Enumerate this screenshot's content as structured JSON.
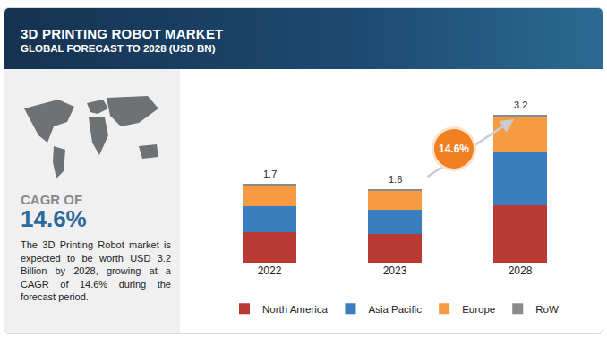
{
  "chart_data": {
    "type": "bar",
    "title": "3D PRINTING ROBOT MARKET",
    "subtitle": "GLOBAL FORECAST TO 2028 (USD BN)",
    "categories": [
      "2022",
      "2023",
      "2028"
    ],
    "series": [
      {
        "name": "North America",
        "color": "#b83a32",
        "values": [
          0.66,
          0.62,
          1.25
        ]
      },
      {
        "name": "Asia Pacific",
        "color": "#3a7ebf",
        "values": [
          0.57,
          0.53,
          1.16
        ]
      },
      {
        "name": "Europe",
        "color": "#f59b42",
        "values": [
          0.43,
          0.41,
          0.75
        ]
      },
      {
        "name": "RoW",
        "color": "#8a8a8a",
        "values": [
          0.04,
          0.04,
          0.04
        ]
      }
    ],
    "totals": [
      1.7,
      1.6,
      3.2
    ],
    "annotations": [
      "14.6%"
    ],
    "stacked": true,
    "legend": "bottom",
    "tick_labels": "x",
    "grid": false
  },
  "panel": {
    "cagr_label": "CAGR OF",
    "cagr": "14.6%",
    "text": "The 3D Printing Robot market is expected to be worth USD 3.2 Billion by 2028, growing at a CAGR of 14.6% during the forecast period."
  }
}
